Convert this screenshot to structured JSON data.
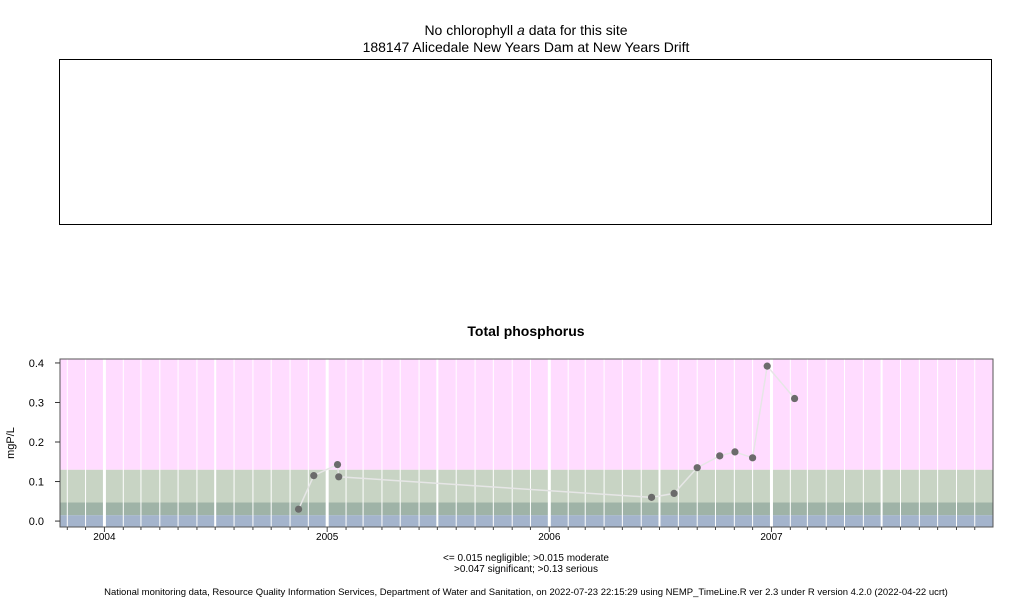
{
  "top_panel": {
    "title_prefix": "No chlorophyll ",
    "title_italic": "a",
    "title_suffix": " data for this site",
    "subtitle": "188147 Alicedale New Years Dam at New Years Drift"
  },
  "chart_data": {
    "type": "line",
    "title": "Total phosphorus",
    "ylabel": "mgP/L",
    "xlabel": "",
    "ylim": [
      -0.015,
      0.41
    ],
    "xlim": [
      "2003-10-20",
      "2007-12-31"
    ],
    "y_ticks": [
      "0.0",
      "0.1",
      "0.2",
      "0.3",
      "0.4"
    ],
    "x_ticks": [
      "2004",
      "2005",
      "2006",
      "2007"
    ],
    "bands": [
      {
        "label": "negligible",
        "from": -0.015,
        "to": 0.015,
        "color": "#a4b4cc"
      },
      {
        "label": "moderate",
        "from": 0.015,
        "to": 0.047,
        "color": "#9fb3a7"
      },
      {
        "label": "significant",
        "from": 0.047,
        "to": 0.13,
        "color": "#c8d4c4"
      },
      {
        "label": "serious",
        "from": 0.13,
        "to": 0.41,
        "color": "#ffdcff"
      }
    ],
    "series": [
      {
        "points": [
          {
            "x": "2004-11-15",
            "y": 0.03
          },
          {
            "x": "2004-12-10",
            "y": 0.115
          },
          {
            "x": "2005-01-18",
            "y": 0.143
          },
          {
            "x": "2005-01-20",
            "y": 0.112
          },
          {
            "x": "2006-06-18",
            "y": 0.06
          },
          {
            "x": "2006-07-25",
            "y": 0.07
          },
          {
            "x": "2006-09-01",
            "y": 0.135
          },
          {
            "x": "2006-10-08",
            "y": 0.165
          },
          {
            "x": "2006-11-02",
            "y": 0.175
          },
          {
            "x": "2006-12-01",
            "y": 0.16
          },
          {
            "x": "2006-12-25",
            "y": 0.392
          },
          {
            "x": "2007-02-08",
            "y": 0.31
          }
        ]
      }
    ],
    "legend_line1": "<= 0.015 negligible; >0.015 moderate",
    "legend_line2": ">0.047 significant; >0.13 serious"
  },
  "footer": "National monitoring data, Resource Quality Information Services, Department of Water and Sanitation, on 2022-07-23 22:15:29 using NEMP_TimeLine.R ver 2.3 under R version 4.2.0 (2022-04-22 ucrt)"
}
